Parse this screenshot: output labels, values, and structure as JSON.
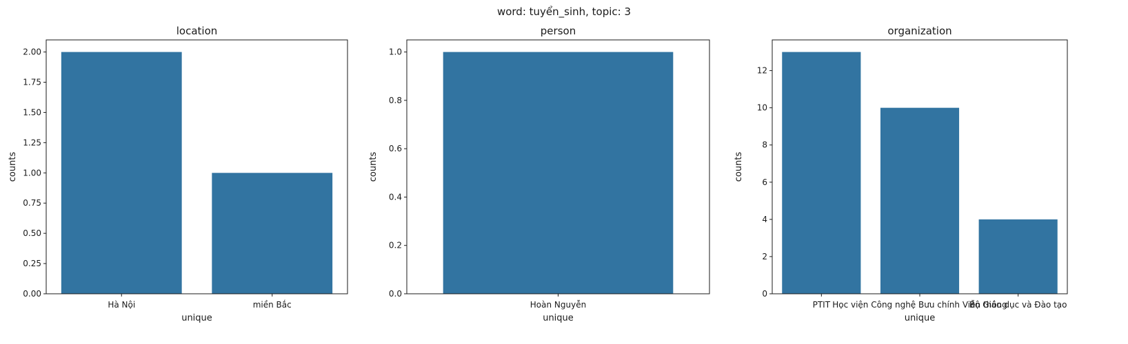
{
  "figure": {
    "suptitle": "word: tuyển_sinh, topic: 3",
    "bar_color": "#3274a1"
  },
  "chart_data": [
    {
      "type": "bar",
      "title": "location",
      "xlabel": "unique",
      "ylabel": "counts",
      "categories": [
        "Hà Nội",
        "miền Bắc"
      ],
      "values": [
        2,
        1
      ],
      "ylim": [
        0,
        2.1
      ],
      "yticks": [
        0.0,
        0.25,
        0.5,
        0.75,
        1.0,
        1.25,
        1.5,
        1.75,
        2.0
      ],
      "ytick_labels": [
        "0.00",
        "0.25",
        "0.50",
        "0.75",
        "1.00",
        "1.25",
        "1.50",
        "1.75",
        "2.00"
      ],
      "grid": false
    },
    {
      "type": "bar",
      "title": "person",
      "xlabel": "unique",
      "ylabel": "counts",
      "categories": [
        "Hoàn Nguyễn"
      ],
      "values": [
        1
      ],
      "ylim": [
        0,
        1.05
      ],
      "yticks": [
        0.0,
        0.2,
        0.4,
        0.6,
        0.8,
        1.0
      ],
      "ytick_labels": [
        "0.0",
        "0.2",
        "0.4",
        "0.6",
        "0.8",
        "1.0"
      ],
      "grid": false
    },
    {
      "type": "bar",
      "title": "organization",
      "xlabel": "unique",
      "ylabel": "counts",
      "categories": [
        "PTIT",
        "Học viện Công nghệ Bưu chính Viễn thông",
        "Bộ Giáo dục và Đào tạo"
      ],
      "values": [
        13,
        10,
        4
      ],
      "ylim": [
        0,
        13.65
      ],
      "yticks": [
        0,
        2,
        4,
        6,
        8,
        10,
        12
      ],
      "ytick_labels": [
        "0",
        "2",
        "4",
        "6",
        "8",
        "10",
        "12"
      ],
      "grid": false
    }
  ]
}
